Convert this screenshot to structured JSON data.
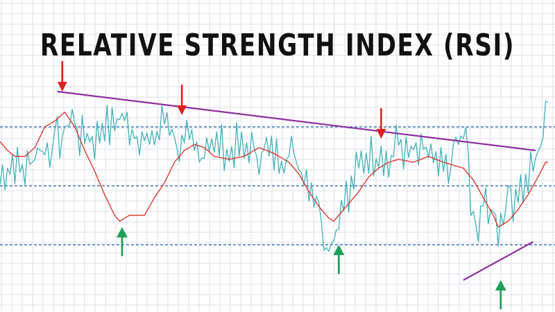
{
  "chart_data": {
    "type": "line",
    "title": "RELATIVE STRENGTH INDEX (RSI)",
    "grid": true,
    "ylim": [
      0,
      100
    ],
    "x_count": 221,
    "reference_levels": [
      {
        "name": "upper",
        "value": 70
      },
      {
        "name": "middle",
        "value": 50
      },
      {
        "name": "lower",
        "value": 30
      }
    ],
    "series": [
      {
        "id": "price",
        "keypoints": [
          [
            0,
            53
          ],
          [
            5,
            58
          ],
          [
            10,
            55
          ],
          [
            15,
            63
          ],
          [
            20,
            62
          ],
          [
            22,
            67
          ],
          [
            25,
            65
          ],
          [
            28,
            74
          ],
          [
            30,
            72
          ],
          [
            32,
            66
          ],
          [
            35,
            68
          ],
          [
            38,
            65
          ],
          [
            42,
            72
          ],
          [
            44,
            69
          ],
          [
            48,
            74
          ],
          [
            52,
            70
          ],
          [
            54,
            69
          ],
          [
            58,
            66
          ],
          [
            60,
            62
          ],
          [
            61,
            68
          ],
          [
            63,
            66
          ],
          [
            66,
            74
          ],
          [
            68,
            72
          ],
          [
            71,
            64
          ],
          [
            73,
            62
          ],
          [
            75,
            65
          ],
          [
            80,
            60
          ],
          [
            84,
            67
          ],
          [
            86,
            62
          ],
          [
            88,
            65
          ],
          [
            92,
            60
          ],
          [
            95,
            64
          ],
          [
            98,
            61
          ],
          [
            100,
            64
          ],
          [
            103,
            60
          ],
          [
            106,
            63
          ],
          [
            108,
            61
          ],
          [
            112,
            60
          ],
          [
            116,
            62
          ],
          [
            120,
            58
          ],
          [
            125,
            50
          ],
          [
            128,
            44
          ],
          [
            130,
            34
          ],
          [
            132,
            29
          ],
          [
            134,
            35
          ],
          [
            136,
            38
          ],
          [
            138,
            49
          ],
          [
            140,
            44
          ],
          [
            142,
            53
          ],
          [
            145,
            58
          ],
          [
            148,
            61
          ],
          [
            150,
            60
          ],
          [
            153,
            63
          ],
          [
            156,
            56
          ],
          [
            158,
            62
          ],
          [
            160,
            66
          ],
          [
            163,
            60
          ],
          [
            165,
            61
          ],
          [
            168,
            60
          ],
          [
            172,
            62
          ],
          [
            175,
            55
          ],
          [
            178,
            56
          ],
          [
            180,
            54
          ],
          [
            182,
            62
          ],
          [
            184,
            65
          ],
          [
            186,
            66
          ],
          [
            188,
            63
          ],
          [
            189,
            38
          ],
          [
            190,
            40
          ],
          [
            191,
            32
          ],
          [
            192,
            38
          ],
          [
            194,
            46
          ],
          [
            196,
            38
          ],
          [
            197,
            43
          ],
          [
            199,
            41
          ],
          [
            200,
            35
          ],
          [
            202,
            41
          ],
          [
            204,
            48
          ],
          [
            206,
            45
          ],
          [
            208,
            50
          ],
          [
            211,
            49
          ],
          [
            213,
            55
          ],
          [
            215,
            58
          ],
          [
            217,
            64
          ],
          [
            219,
            77
          ]
        ],
        "color": "#3fb2b8"
      },
      {
        "id": "signal",
        "keypoints": [
          [
            0,
            65
          ],
          [
            3,
            62
          ],
          [
            6,
            60
          ],
          [
            10,
            60
          ],
          [
            14,
            63
          ],
          [
            18,
            70
          ],
          [
            22,
            72
          ],
          [
            26,
            75
          ],
          [
            30,
            70
          ],
          [
            34,
            62
          ],
          [
            38,
            55
          ],
          [
            42,
            47
          ],
          [
            46,
            40
          ],
          [
            48,
            38
          ],
          [
            52,
            40
          ],
          [
            58,
            40
          ],
          [
            62,
            46
          ],
          [
            66,
            51
          ],
          [
            70,
            58
          ],
          [
            74,
            62
          ],
          [
            78,
            64
          ],
          [
            82,
            63
          ],
          [
            86,
            60
          ],
          [
            92,
            59
          ],
          [
            98,
            60
          ],
          [
            104,
            63
          ],
          [
            110,
            61
          ],
          [
            116,
            58
          ],
          [
            120,
            54
          ],
          [
            124,
            48
          ],
          [
            128,
            43
          ],
          [
            132,
            39
          ],
          [
            134,
            38
          ],
          [
            136,
            40
          ],
          [
            140,
            44
          ],
          [
            144,
            48
          ],
          [
            148,
            53
          ],
          [
            152,
            56
          ],
          [
            156,
            58
          ],
          [
            160,
            59
          ],
          [
            166,
            58
          ],
          [
            172,
            60
          ],
          [
            178,
            58
          ],
          [
            182,
            57
          ],
          [
            186,
            56
          ],
          [
            190,
            52
          ],
          [
            194,
            46
          ],
          [
            198,
            40
          ],
          [
            200,
            36
          ],
          [
            204,
            38
          ],
          [
            208,
            42
          ],
          [
            212,
            47
          ],
          [
            216,
            53
          ],
          [
            219,
            58
          ]
        ],
        "color": "#d93a32"
      }
    ],
    "trendlines": [
      {
        "from": [
          23,
          82
        ],
        "to": [
          215,
          62
        ],
        "color": "#8e2ea0"
      },
      {
        "from": [
          186,
          18
        ],
        "to": [
          214,
          31
        ],
        "color": "#8e2ea0"
      }
    ],
    "markers": [
      {
        "kind": "sell",
        "x": 25,
        "y": 82,
        "color": "#e0201e"
      },
      {
        "kind": "sell",
        "x": 73,
        "y": 74,
        "color": "#e0201e"
      },
      {
        "kind": "sell",
        "x": 153,
        "y": 66,
        "color": "#e0201e"
      },
      {
        "kind": "buy",
        "x": 49,
        "y": 36,
        "color": "#1ea05a"
      },
      {
        "kind": "buy",
        "x": 136,
        "y": 30,
        "color": "#1ea05a"
      },
      {
        "kind": "buy",
        "x": 201,
        "y": 18,
        "color": "#1ea05a"
      }
    ],
    "colors": {
      "grid": "#dcdfe8",
      "reference": "#3c73b8",
      "background": "#ffffff",
      "title": "#111111"
    }
  }
}
